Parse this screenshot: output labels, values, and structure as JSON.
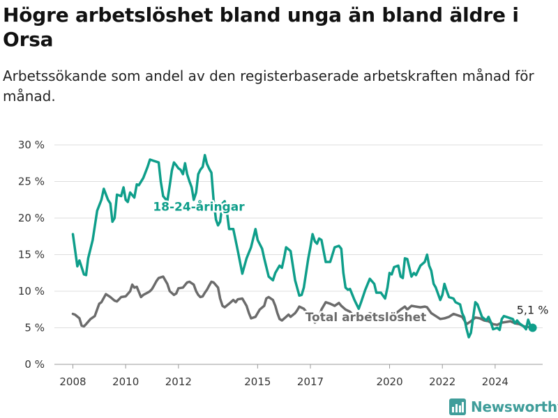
{
  "header": {
    "title": "Högre arbetslöshet bland unga än bland äldre i Orsa",
    "subtitle": "Arbetssökande som andel av den registerbaserade arbetskraften månad för månad."
  },
  "brand": {
    "name": "Newsworthy",
    "color": "#3f9d9a"
  },
  "chart_data": {
    "type": "line",
    "xlim": [
      2007.3,
      2025.8
    ],
    "ylim": [
      0,
      30
    ],
    "y_ticks": [
      0,
      5,
      10,
      15,
      20,
      25,
      30
    ],
    "y_tick_labels": [
      "0 %",
      "5 %",
      "10 %",
      "15 %",
      "20 %",
      "25 %",
      "30 %"
    ],
    "x_ticks": [
      2008,
      2010,
      2012,
      2015,
      2017,
      2020,
      2022,
      2024
    ],
    "x_tick_labels": [
      "2008",
      "2010",
      "2012",
      "2015",
      "2017",
      "2020",
      "2022",
      "2024"
    ],
    "grid": true,
    "end_label": "5,1 %",
    "series": [
      {
        "name": "18-24-åringar",
        "color": "#0e9e8a",
        "points": [
          [
            2008.0,
            17.8
          ],
          [
            2008.17,
            13.4
          ],
          [
            2008.25,
            14.2
          ],
          [
            2008.42,
            12.3
          ],
          [
            2008.5,
            12.2
          ],
          [
            2008.58,
            14.5
          ],
          [
            2008.75,
            17.0
          ],
          [
            2008.92,
            21.0
          ],
          [
            2009.08,
            22.5
          ],
          [
            2009.17,
            24.0
          ],
          [
            2009.33,
            22.5
          ],
          [
            2009.42,
            22.0
          ],
          [
            2009.5,
            19.5
          ],
          [
            2009.58,
            20.0
          ],
          [
            2009.67,
            23.2
          ],
          [
            2009.83,
            23.0
          ],
          [
            2009.92,
            24.2
          ],
          [
            2010.0,
            22.5
          ],
          [
            2010.08,
            22.2
          ],
          [
            2010.17,
            23.5
          ],
          [
            2010.33,
            22.8
          ],
          [
            2010.42,
            24.6
          ],
          [
            2010.5,
            24.5
          ],
          [
            2010.67,
            25.5
          ],
          [
            2010.83,
            27.0
          ],
          [
            2010.92,
            28.0
          ],
          [
            2011.08,
            27.8
          ],
          [
            2011.25,
            27.6
          ],
          [
            2011.33,
            25.0
          ],
          [
            2011.42,
            23.0
          ],
          [
            2011.58,
            22.3
          ],
          [
            2011.67,
            24.5
          ],
          [
            2011.75,
            26.5
          ],
          [
            2011.83,
            27.6
          ],
          [
            2011.92,
            27.2
          ],
          [
            2012.0,
            26.8
          ],
          [
            2012.08,
            26.6
          ],
          [
            2012.17,
            26.0
          ],
          [
            2012.25,
            27.5
          ],
          [
            2012.33,
            26.0
          ],
          [
            2012.42,
            25.0
          ],
          [
            2012.5,
            24.2
          ],
          [
            2012.58,
            22.5
          ],
          [
            2012.67,
            23.5
          ],
          [
            2012.75,
            26.0
          ],
          [
            2012.83,
            26.6
          ],
          [
            2012.92,
            27.0
          ],
          [
            2013.0,
            28.6
          ],
          [
            2013.08,
            27.4
          ],
          [
            2013.17,
            26.7
          ],
          [
            2013.25,
            26.2
          ],
          [
            2013.33,
            22.5
          ],
          [
            2013.42,
            19.8
          ],
          [
            2013.5,
            19.0
          ],
          [
            2013.58,
            19.5
          ],
          [
            2013.67,
            22.0
          ],
          [
            2013.75,
            22.3
          ],
          [
            2013.83,
            21.0
          ],
          [
            2013.92,
            18.5
          ],
          [
            2014.08,
            18.5
          ],
          [
            2014.25,
            15.5
          ],
          [
            2014.42,
            12.4
          ],
          [
            2014.58,
            14.5
          ],
          [
            2014.75,
            16.0
          ],
          [
            2014.92,
            18.5
          ],
          [
            2015.0,
            17.0
          ],
          [
            2015.17,
            15.8
          ],
          [
            2015.25,
            14.5
          ],
          [
            2015.42,
            12.0
          ],
          [
            2015.58,
            11.5
          ],
          [
            2015.67,
            12.5
          ],
          [
            2015.83,
            13.5
          ],
          [
            2015.92,
            13.2
          ],
          [
            2016.0,
            14.5
          ],
          [
            2016.08,
            16.0
          ],
          [
            2016.25,
            15.5
          ],
          [
            2016.42,
            11.5
          ],
          [
            2016.58,
            9.4
          ],
          [
            2016.67,
            9.5
          ],
          [
            2016.75,
            10.5
          ],
          [
            2016.92,
            14.5
          ],
          [
            2017.0,
            16.0
          ],
          [
            2017.08,
            17.8
          ],
          [
            2017.17,
            16.8
          ],
          [
            2017.25,
            16.5
          ],
          [
            2017.33,
            17.2
          ],
          [
            2017.42,
            17.0
          ],
          [
            2017.58,
            14.0
          ],
          [
            2017.75,
            14.0
          ],
          [
            2017.92,
            16.0
          ],
          [
            2018.08,
            16.2
          ],
          [
            2018.17,
            15.8
          ],
          [
            2018.25,
            12.5
          ],
          [
            2018.33,
            10.5
          ],
          [
            2018.42,
            10.2
          ],
          [
            2018.5,
            10.3
          ],
          [
            2018.67,
            8.8
          ],
          [
            2018.83,
            7.6
          ],
          [
            2018.92,
            8.5
          ],
          [
            2019.08,
            10.2
          ],
          [
            2019.25,
            11.7
          ],
          [
            2019.42,
            11.0
          ],
          [
            2019.5,
            9.8
          ],
          [
            2019.67,
            9.8
          ],
          [
            2019.83,
            9.0
          ],
          [
            2019.92,
            10.5
          ],
          [
            2020.0,
            12.5
          ],
          [
            2020.08,
            12.3
          ],
          [
            2020.17,
            13.3
          ],
          [
            2020.33,
            13.5
          ],
          [
            2020.42,
            12.0
          ],
          [
            2020.5,
            11.8
          ],
          [
            2020.58,
            14.5
          ],
          [
            2020.67,
            14.4
          ],
          [
            2020.83,
            12.0
          ],
          [
            2020.92,
            12.5
          ],
          [
            2021.0,
            12.2
          ],
          [
            2021.17,
            13.5
          ],
          [
            2021.33,
            14.0
          ],
          [
            2021.42,
            15.0
          ],
          [
            2021.5,
            13.5
          ],
          [
            2021.58,
            12.8
          ],
          [
            2021.67,
            11.0
          ],
          [
            2021.75,
            10.5
          ],
          [
            2021.92,
            8.8
          ],
          [
            2022.0,
            9.5
          ],
          [
            2022.08,
            11.0
          ],
          [
            2022.17,
            10.0
          ],
          [
            2022.25,
            9.2
          ],
          [
            2022.42,
            9.0
          ],
          [
            2022.5,
            8.5
          ],
          [
            2022.67,
            8.2
          ],
          [
            2022.75,
            7.0
          ],
          [
            2022.83,
            6.4
          ],
          [
            2022.92,
            4.8
          ],
          [
            2023.0,
            3.7
          ],
          [
            2023.08,
            4.3
          ],
          [
            2023.17,
            6.5
          ],
          [
            2023.25,
            8.5
          ],
          [
            2023.33,
            8.2
          ],
          [
            2023.5,
            6.5
          ],
          [
            2023.67,
            6.0
          ],
          [
            2023.75,
            6.5
          ],
          [
            2023.83,
            5.8
          ],
          [
            2023.92,
            4.8
          ],
          [
            2024.08,
            5.0
          ],
          [
            2024.17,
            4.7
          ],
          [
            2024.25,
            6.2
          ],
          [
            2024.33,
            6.6
          ],
          [
            2024.5,
            6.4
          ],
          [
            2024.67,
            6.2
          ],
          [
            2024.75,
            5.6
          ],
          [
            2024.83,
            6.0
          ],
          [
            2024.92,
            5.6
          ],
          [
            2025.08,
            5.2
          ],
          [
            2025.17,
            4.8
          ],
          [
            2025.25,
            6.1
          ],
          [
            2025.33,
            5.3
          ],
          [
            2025.42,
            5.0
          ]
        ]
      },
      {
        "name": "Total arbetslöshet",
        "color": "#6b6b6b",
        "points": [
          [
            2008.0,
            6.9
          ],
          [
            2008.08,
            6.8
          ],
          [
            2008.25,
            6.3
          ],
          [
            2008.33,
            5.3
          ],
          [
            2008.42,
            5.2
          ],
          [
            2008.5,
            5.5
          ],
          [
            2008.67,
            6.2
          ],
          [
            2008.83,
            6.6
          ],
          [
            2009.0,
            8.3
          ],
          [
            2009.08,
            8.5
          ],
          [
            2009.25,
            9.6
          ],
          [
            2009.42,
            9.2
          ],
          [
            2009.58,
            8.7
          ],
          [
            2009.67,
            8.6
          ],
          [
            2009.83,
            9.2
          ],
          [
            2010.0,
            9.3
          ],
          [
            2010.17,
            10.0
          ],
          [
            2010.25,
            10.9
          ],
          [
            2010.33,
            10.5
          ],
          [
            2010.42,
            10.6
          ],
          [
            2010.58,
            9.2
          ],
          [
            2010.67,
            9.5
          ],
          [
            2010.83,
            9.8
          ],
          [
            2010.92,
            10.0
          ],
          [
            2011.0,
            10.3
          ],
          [
            2011.08,
            10.8
          ],
          [
            2011.17,
            11.4
          ],
          [
            2011.25,
            11.8
          ],
          [
            2011.42,
            12.0
          ],
          [
            2011.58,
            11.0
          ],
          [
            2011.67,
            10.0
          ],
          [
            2011.83,
            9.5
          ],
          [
            2011.92,
            9.7
          ],
          [
            2012.0,
            10.4
          ],
          [
            2012.17,
            10.5
          ],
          [
            2012.33,
            11.2
          ],
          [
            2012.42,
            11.3
          ],
          [
            2012.58,
            10.9
          ],
          [
            2012.67,
            10.0
          ],
          [
            2012.75,
            9.5
          ],
          [
            2012.83,
            9.2
          ],
          [
            2012.92,
            9.3
          ],
          [
            2013.0,
            9.8
          ],
          [
            2013.08,
            10.2
          ],
          [
            2013.17,
            10.8
          ],
          [
            2013.25,
            11.3
          ],
          [
            2013.33,
            11.2
          ],
          [
            2013.5,
            10.5
          ],
          [
            2013.58,
            9.0
          ],
          [
            2013.67,
            8.0
          ],
          [
            2013.75,
            7.8
          ],
          [
            2013.92,
            8.3
          ],
          [
            2014.08,
            8.8
          ],
          [
            2014.17,
            8.5
          ],
          [
            2014.25,
            8.9
          ],
          [
            2014.42,
            9.0
          ],
          [
            2014.58,
            8.0
          ],
          [
            2014.67,
            7.0
          ],
          [
            2014.75,
            6.3
          ],
          [
            2014.92,
            6.5
          ],
          [
            2015.08,
            7.5
          ],
          [
            2015.25,
            8.0
          ],
          [
            2015.33,
            9.0
          ],
          [
            2015.42,
            9.2
          ],
          [
            2015.58,
            8.8
          ],
          [
            2015.67,
            8.0
          ],
          [
            2015.75,
            7.0
          ],
          [
            2015.83,
            6.2
          ],
          [
            2015.92,
            6.0
          ],
          [
            2016.08,
            6.5
          ],
          [
            2016.17,
            6.8
          ],
          [
            2016.25,
            6.5
          ],
          [
            2016.42,
            7.0
          ],
          [
            2016.5,
            7.4
          ],
          [
            2016.58,
            7.9
          ],
          [
            2016.75,
            7.6
          ],
          [
            2016.92,
            6.8
          ],
          [
            2017.0,
            6.6
          ],
          [
            2017.08,
            6.2
          ],
          [
            2017.17,
            5.7
          ],
          [
            2017.25,
            6.0
          ],
          [
            2017.33,
            6.5
          ],
          [
            2017.42,
            7.5
          ],
          [
            2017.58,
            8.5
          ],
          [
            2017.75,
            8.3
          ],
          [
            2017.92,
            8.0
          ],
          [
            2018.08,
            8.4
          ],
          [
            2018.17,
            8.0
          ],
          [
            2018.33,
            7.5
          ],
          [
            2018.5,
            7.2
          ],
          [
            2018.67,
            6.5
          ],
          [
            2018.83,
            6.0
          ],
          [
            2018.92,
            6.2
          ],
          [
            2019.08,
            6.6
          ],
          [
            2019.25,
            7.0
          ],
          [
            2019.42,
            6.8
          ],
          [
            2019.58,
            6.2
          ],
          [
            2019.75,
            6.3
          ],
          [
            2019.92,
            6.8
          ],
          [
            2020.08,
            7.2
          ],
          [
            2020.25,
            7.0
          ],
          [
            2020.42,
            7.5
          ],
          [
            2020.58,
            7.9
          ],
          [
            2020.67,
            7.5
          ],
          [
            2020.83,
            8.0
          ],
          [
            2021.0,
            7.9
          ],
          [
            2021.17,
            7.8
          ],
          [
            2021.33,
            7.9
          ],
          [
            2021.42,
            7.8
          ],
          [
            2021.58,
            7.0
          ],
          [
            2021.75,
            6.6
          ],
          [
            2021.92,
            6.2
          ],
          [
            2022.08,
            6.3
          ],
          [
            2022.25,
            6.5
          ],
          [
            2022.42,
            6.9
          ],
          [
            2022.58,
            6.7
          ],
          [
            2022.75,
            6.5
          ],
          [
            2022.92,
            5.5
          ],
          [
            2023.08,
            5.9
          ],
          [
            2023.25,
            6.4
          ],
          [
            2023.42,
            6.3
          ],
          [
            2023.58,
            6.0
          ],
          [
            2023.75,
            5.9
          ],
          [
            2023.92,
            5.5
          ],
          [
            2024.08,
            5.4
          ],
          [
            2024.25,
            5.7
          ],
          [
            2024.42,
            5.8
          ],
          [
            2024.58,
            5.9
          ],
          [
            2024.75,
            5.6
          ],
          [
            2024.92,
            5.5
          ],
          [
            2025.08,
            5.2
          ],
          [
            2025.25,
            5.1
          ],
          [
            2025.42,
            5.1
          ]
        ]
      }
    ]
  }
}
